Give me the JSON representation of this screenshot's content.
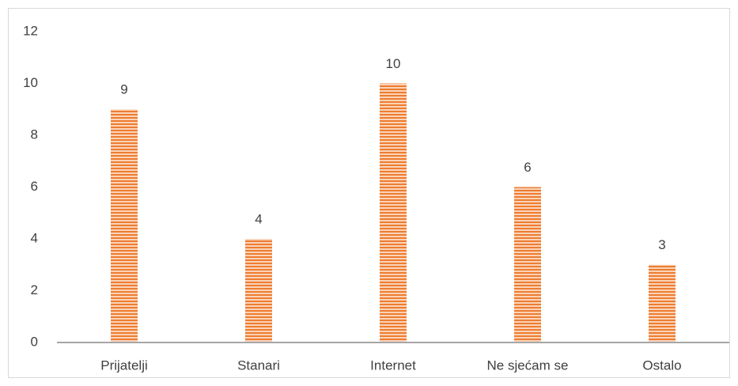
{
  "chart_data": {
    "type": "bar",
    "categories": [
      "Prijatelji",
      "Stanari",
      "Internet",
      "Ne sjećam se",
      "Ostalo"
    ],
    "values": [
      9,
      4,
      10,
      6,
      3
    ],
    "color": "#ed7d31",
    "ylim": [
      0,
      12
    ],
    "yticks": [
      0,
      2,
      4,
      6,
      8,
      10,
      12
    ],
    "grid": false
  }
}
